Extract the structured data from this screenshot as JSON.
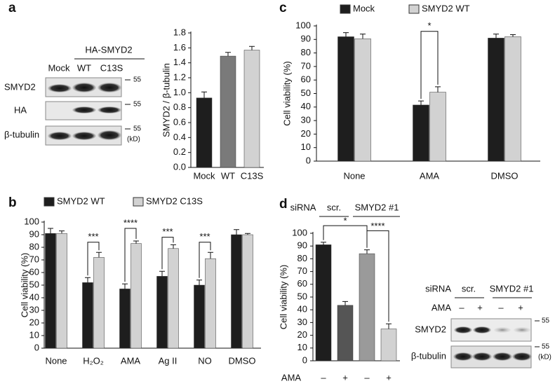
{
  "panel_labels": [
    "a",
    "b",
    "c",
    "d"
  ],
  "blots": [
    {
      "header": "HA-SMYD2",
      "lanes": [
        "Mock",
        "WT",
        "C13S"
      ],
      "rows": [
        "SMYD2",
        "HA",
        "β-tubulin"
      ],
      "markers": [
        "55",
        "55",
        "55"
      ],
      "unit": "(kD)"
    },
    {
      "header": "siRNA",
      "groups": [
        "scr.",
        "SMYD2 #1"
      ],
      "treatment": "AMA",
      "lanes": [
        "–",
        "+",
        "–",
        "+"
      ],
      "rows": [
        "SMYD2",
        "β-tubulin"
      ],
      "markers": [
        "55",
        "55"
      ],
      "unit": "(kD)"
    }
  ],
  "chart_data": [
    {
      "type": "bar",
      "ylabel": "SMYD2 / β-tubulin",
      "categories": [
        "Mock",
        "WT",
        "C13S"
      ],
      "values": [
        0.93,
        1.49,
        1.57
      ],
      "errors": [
        0.08,
        0.05,
        0.05
      ],
      "colors": [
        "#1e1e1e",
        "#7a7a7a",
        "#d2d2d2"
      ],
      "ylim": [
        0,
        1.8
      ],
      "yticks": [
        {
          "value": 0,
          "label": "0.0"
        },
        0.2,
        0.4,
        0.6,
        0.8,
        {
          "value": 1,
          "label": "1.0"
        },
        1.2,
        1.4,
        1.6,
        1.8
      ]
    },
    {
      "type": "bar",
      "ylabel": "Cell viability (%)",
      "categories": [
        "None",
        "H₂O₂",
        "AMA",
        "Ag II",
        "NO",
        "DMSO"
      ],
      "series": [
        {
          "name": "SMYD2 WT",
          "color": "#1e1e1e",
          "values": [
            91,
            52,
            47,
            57,
            50,
            90
          ],
          "errors": [
            4,
            4,
            4,
            4,
            4,
            4
          ]
        },
        {
          "name": "SMYD2 C13S",
          "color": "#d2d2d2",
          "values": [
            91,
            72,
            83,
            79,
            71,
            90
          ],
          "errors": [
            2,
            4,
            2,
            3,
            5,
            1
          ]
        }
      ],
      "annotations": [
        "***",
        "****",
        "***",
        "***"
      ],
      "ylim": [
        0,
        100
      ],
      "yticks": [
        0,
        10,
        20,
        30,
        40,
        50,
        60,
        70,
        80,
        90,
        100
      ]
    },
    {
      "type": "bar",
      "ylabel": "Cell viability (%)",
      "categories": [
        "None",
        "AMA",
        "DMSO"
      ],
      "series": [
        {
          "name": "Mock",
          "color": "#1e1e1e",
          "values": [
            92,
            41.5,
            91
          ],
          "errors": [
            3,
            3,
            3
          ]
        },
        {
          "name": "SMYD2 WT",
          "color": "#d2d2d2",
          "values": [
            90.5,
            51,
            92
          ],
          "errors": [
            3.5,
            4,
            1.5
          ]
        }
      ],
      "annotations": [
        "*"
      ],
      "ylim": [
        0,
        100
      ],
      "yticks": [
        0,
        10,
        20,
        30,
        40,
        50,
        60,
        70,
        80,
        90,
        100
      ]
    },
    {
      "type": "bar",
      "ylabel": "Cell viability (%)",
      "xlabel": "AMA",
      "group_header": {
        "label": "siRNA",
        "groups": [
          "scr.",
          "SMYD2 #1"
        ]
      },
      "categories": [
        "–",
        "+",
        "–",
        "+"
      ],
      "values": [
        91,
        43.5,
        84,
        25
      ],
      "errors": [
        2,
        3,
        3,
        4
      ],
      "colors": [
        "#1e1e1e",
        "#555555",
        "#9a9a9a",
        "#d2d2d2"
      ],
      "annotations": [
        "*",
        "****"
      ],
      "ylim": [
        0,
        100
      ],
      "yticks": [
        0,
        10,
        20,
        30,
        40,
        50,
        60,
        70,
        80,
        90,
        100
      ]
    }
  ]
}
